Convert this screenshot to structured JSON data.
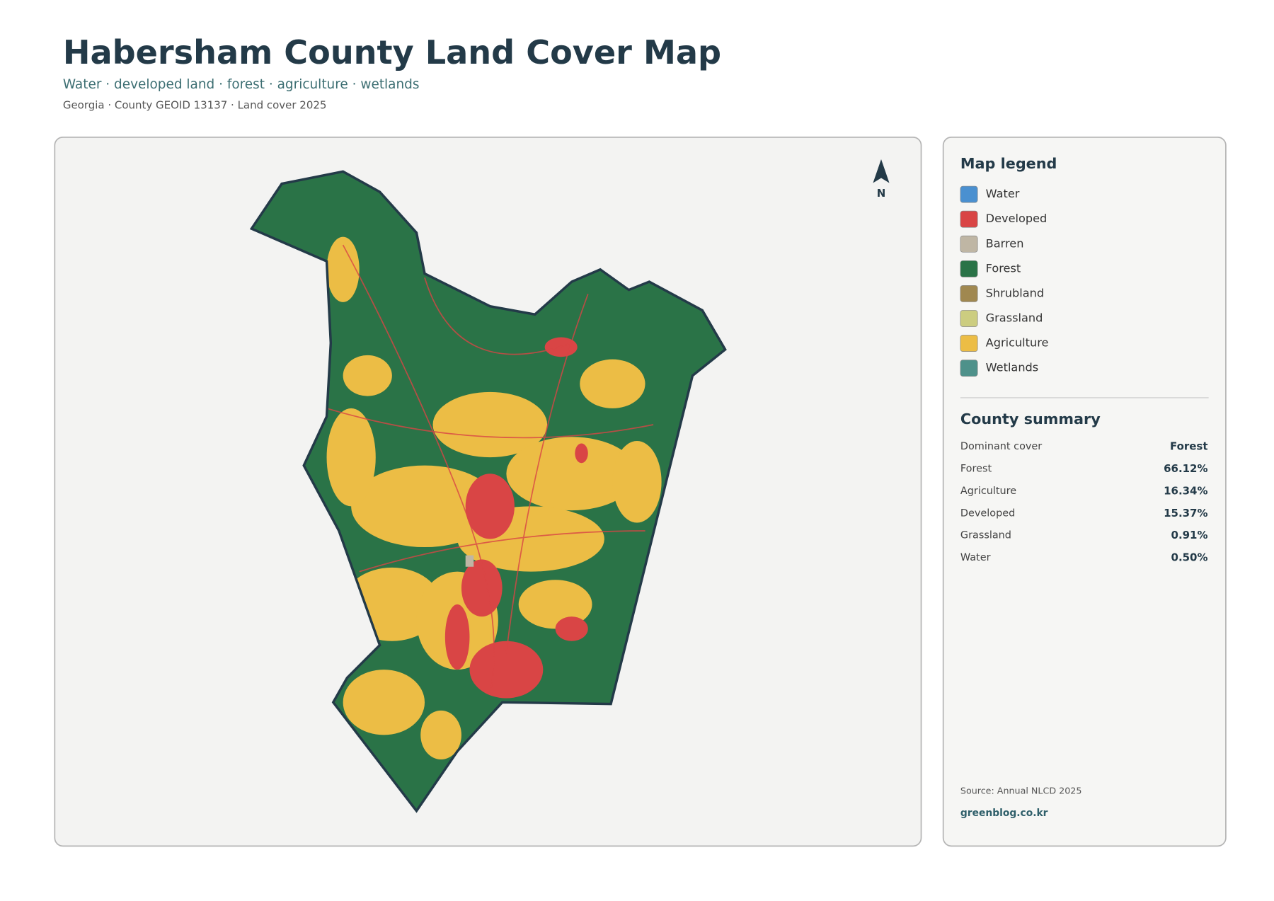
{
  "header": {
    "title": "Habersham County Land Cover Map",
    "subtitle": "Water · developed land · forest · agriculture · wetlands",
    "meta": "Georgia · County GEOID 13137 · Land cover 2025"
  },
  "map": {
    "north_label": "N"
  },
  "legend": {
    "title": "Map legend",
    "items": [
      {
        "label": "Water",
        "color": "#4a90d0"
      },
      {
        "label": "Developed",
        "color": "#d94545"
      },
      {
        "label": "Barren",
        "color": "#bfb6a4"
      },
      {
        "label": "Forest",
        "color": "#2a7347"
      },
      {
        "label": "Shrubland",
        "color": "#a08850"
      },
      {
        "label": "Grassland",
        "color": "#cccd80"
      },
      {
        "label": "Agriculture",
        "color": "#ecbd45"
      },
      {
        "label": "Wetlands",
        "color": "#4e918a"
      }
    ]
  },
  "summary": {
    "title": "County summary",
    "rows": [
      [
        "Dominant cover",
        "Forest"
      ],
      [
        "Forest",
        "66.12%"
      ],
      [
        "Agriculture",
        "16.34%"
      ],
      [
        "Developed",
        "15.37%"
      ],
      [
        "Grassland",
        "0.91%"
      ],
      [
        "Water",
        "0.50%"
      ]
    ]
  },
  "footer": {
    "source": "Source: Annual NLCD 2025",
    "site": "greenblog.co.kr"
  }
}
